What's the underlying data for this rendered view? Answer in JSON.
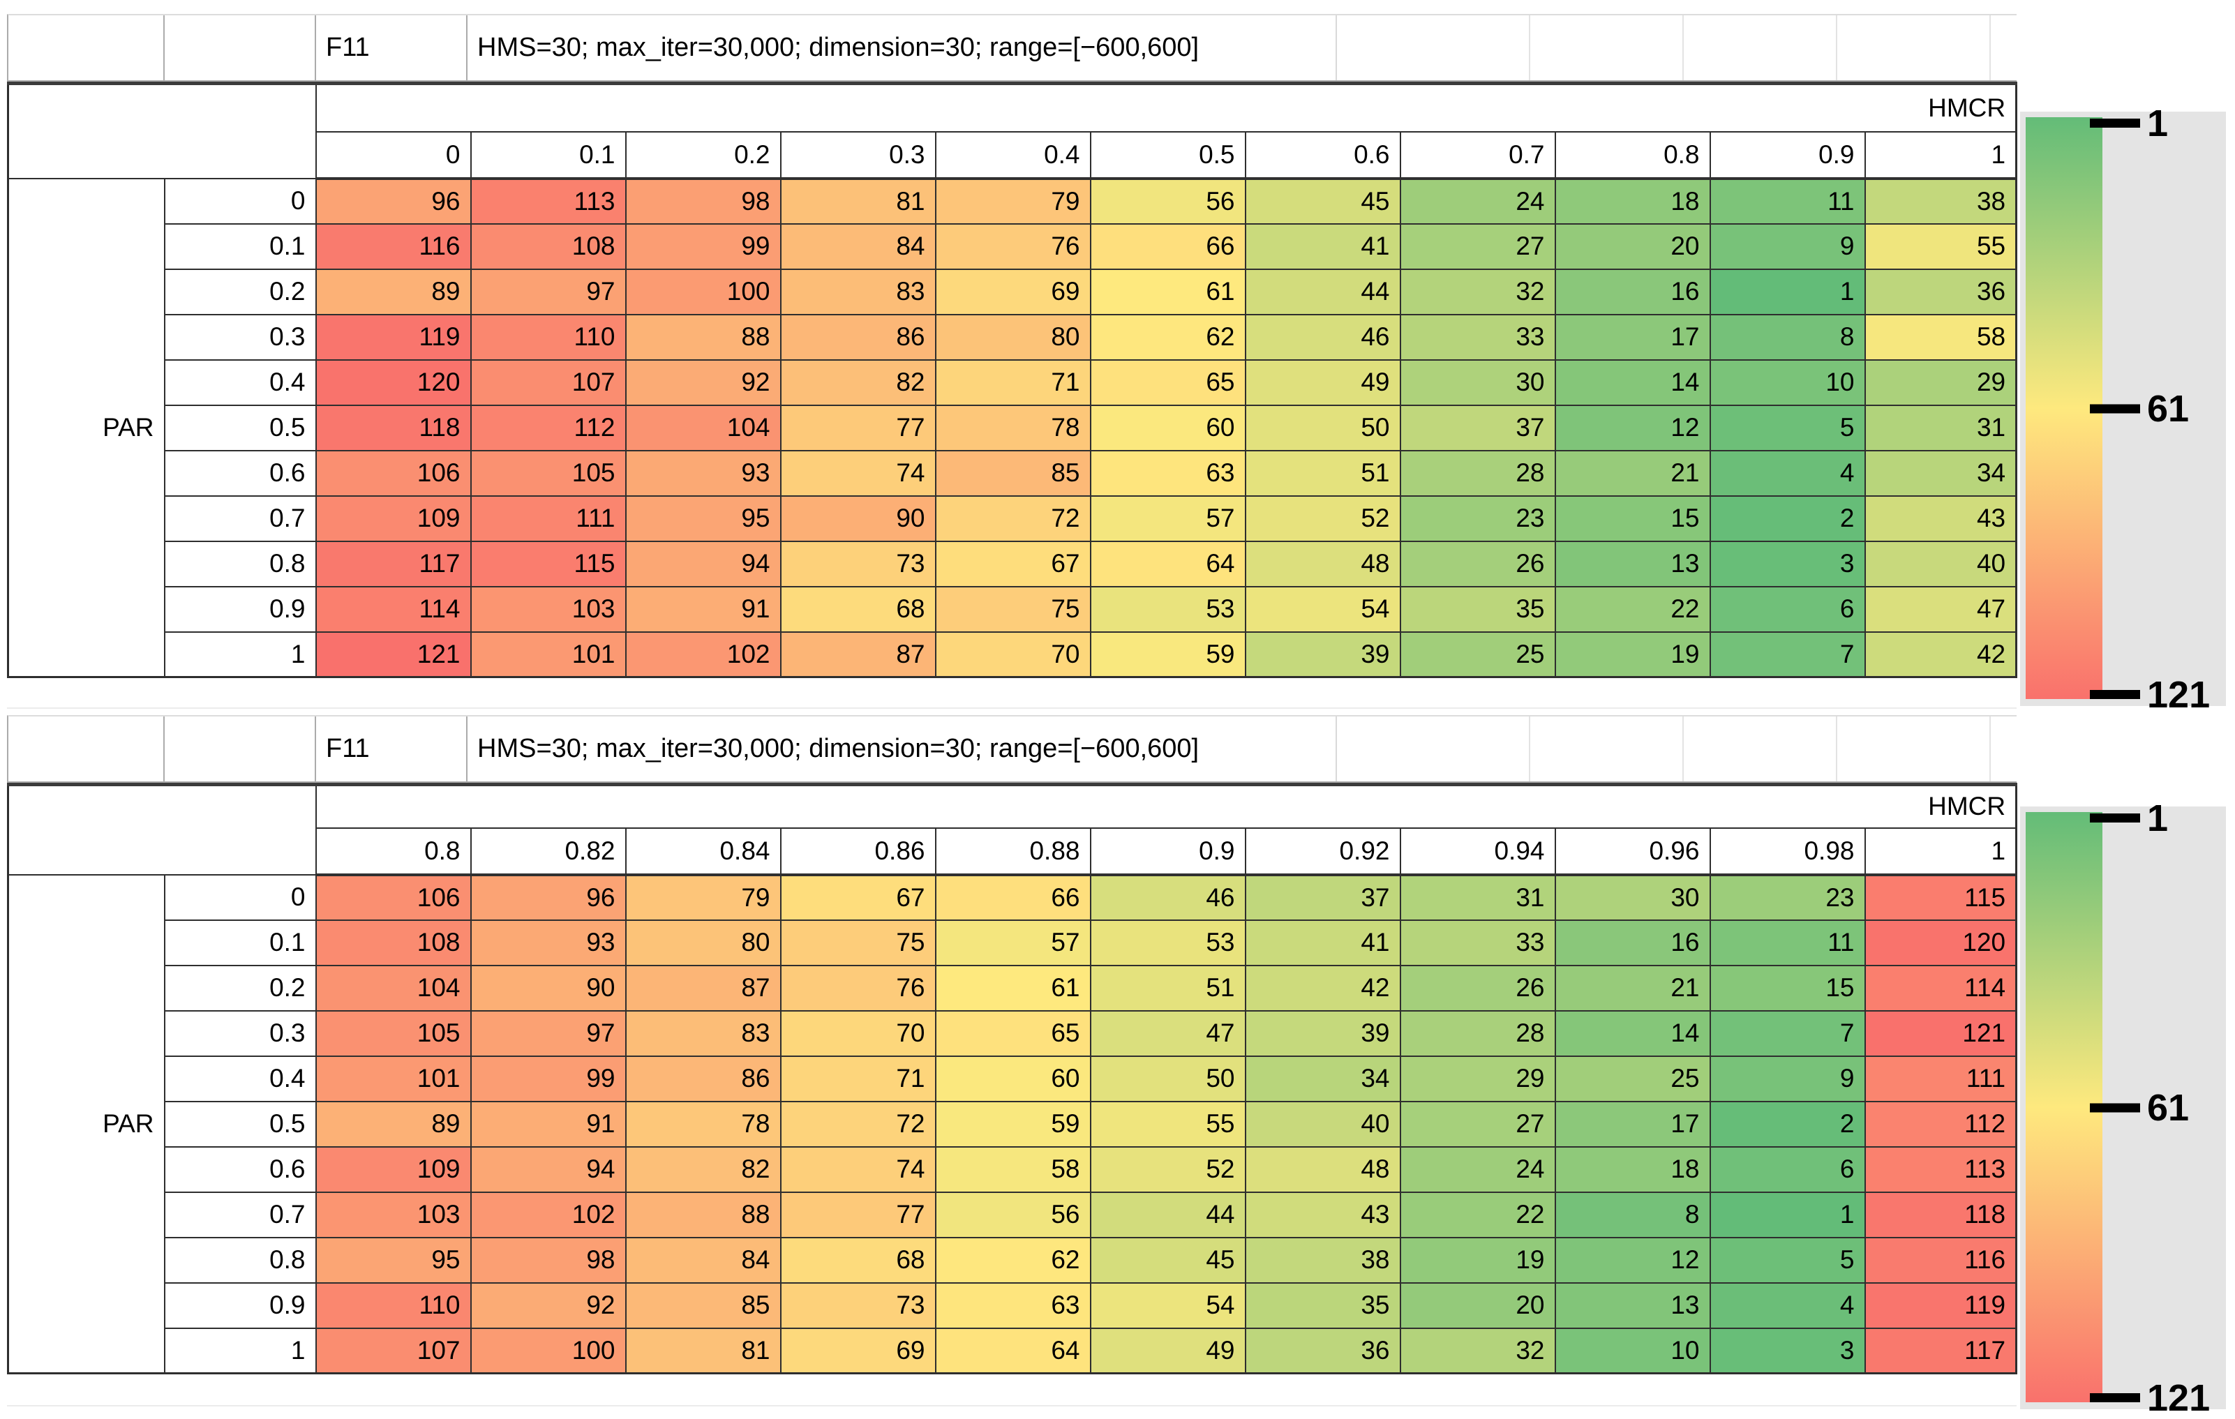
{
  "figure": {
    "blocks": [
      {
        "function_label": "F11",
        "settings": "HMS=30; max_iter=30,000; dimension=30; range=[−600,600]",
        "col_group_label": "HMCR",
        "row_group_label": "PAR"
      },
      {
        "function_label": "F11",
        "settings": "HMS=30; max_iter=30,000; dimension=30; range=[−600,600]",
        "col_group_label": "HMCR",
        "row_group_label": "PAR"
      }
    ],
    "legend": {
      "top_label": "1",
      "mid_label": "61",
      "bottom_label": "121"
    },
    "colors": {
      "scale_min_green": "#63BC78",
      "scale_mid_yellow": "#FEE97E",
      "scale_max_red": "#F9716C",
      "legend_panel": "#E4E4E4",
      "border_dark": "#2E2E2E",
      "grid_faint": "#E3E3E3"
    }
  },
  "chart_data": [
    {
      "type": "heatmap",
      "title": "F11 — HMS=30; max_iter=30,000; dimension=30; range=[−600,600]",
      "xlabel": "HMCR",
      "ylabel": "PAR",
      "columns": [
        "0",
        "0.1",
        "0.2",
        "0.3",
        "0.4",
        "0.5",
        "0.6",
        "0.7",
        "0.8",
        "0.9",
        "1"
      ],
      "rows": [
        "0",
        "0.1",
        "0.2",
        "0.3",
        "0.4",
        "0.5",
        "0.6",
        "0.7",
        "0.8",
        "0.9",
        "1"
      ],
      "values": [
        [
          96,
          113,
          98,
          81,
          79,
          56,
          45,
          24,
          18,
          11,
          38
        ],
        [
          116,
          108,
          99,
          84,
          76,
          66,
          41,
          27,
          20,
          9,
          55
        ],
        [
          89,
          97,
          100,
          83,
          69,
          61,
          44,
          32,
          16,
          1,
          36
        ],
        [
          119,
          110,
          88,
          86,
          80,
          62,
          46,
          33,
          17,
          8,
          58
        ],
        [
          120,
          107,
          92,
          82,
          71,
          65,
          49,
          30,
          14,
          10,
          29
        ],
        [
          118,
          112,
          104,
          77,
          78,
          60,
          50,
          37,
          12,
          5,
          31
        ],
        [
          106,
          105,
          93,
          74,
          85,
          63,
          51,
          28,
          21,
          4,
          34
        ],
        [
          109,
          111,
          95,
          90,
          72,
          57,
          52,
          23,
          15,
          2,
          43
        ],
        [
          117,
          115,
          94,
          73,
          67,
          64,
          48,
          26,
          13,
          3,
          40
        ],
        [
          114,
          103,
          91,
          68,
          75,
          53,
          54,
          35,
          22,
          6,
          47
        ],
        [
          121,
          101,
          102,
          87,
          70,
          59,
          39,
          25,
          19,
          7,
          42
        ]
      ],
      "scale": {
        "min": 1,
        "mid": 61,
        "max": 121,
        "min_color": "#63BC78",
        "mid_color": "#FEE97E",
        "max_color": "#F9716C"
      },
      "legend_ticks": [
        1,
        61,
        121
      ],
      "legend_position": "right"
    },
    {
      "type": "heatmap",
      "title": "F11 — HMS=30; max_iter=30,000; dimension=30; range=[−600,600]",
      "xlabel": "HMCR",
      "ylabel": "PAR",
      "columns": [
        "0.8",
        "0.82",
        "0.84",
        "0.86",
        "0.88",
        "0.9",
        "0.92",
        "0.94",
        "0.96",
        "0.98",
        "1"
      ],
      "rows": [
        "0",
        "0.1",
        "0.2",
        "0.3",
        "0.4",
        "0.5",
        "0.6",
        "0.7",
        "0.8",
        "0.9",
        "1"
      ],
      "values": [
        [
          106,
          96,
          79,
          67,
          66,
          46,
          37,
          31,
          30,
          23,
          115
        ],
        [
          108,
          93,
          80,
          75,
          57,
          53,
          41,
          33,
          16,
          11,
          120
        ],
        [
          104,
          90,
          87,
          76,
          61,
          51,
          42,
          26,
          21,
          15,
          114
        ],
        [
          105,
          97,
          83,
          70,
          65,
          47,
          39,
          28,
          14,
          7,
          121
        ],
        [
          101,
          99,
          86,
          71,
          60,
          50,
          34,
          29,
          25,
          9,
          111
        ],
        [
          89,
          91,
          78,
          72,
          59,
          55,
          40,
          27,
          17,
          2,
          112
        ],
        [
          109,
          94,
          82,
          74,
          58,
          52,
          48,
          24,
          18,
          6,
          113
        ],
        [
          103,
          102,
          88,
          77,
          56,
          44,
          43,
          22,
          8,
          1,
          118
        ],
        [
          95,
          98,
          84,
          68,
          62,
          45,
          38,
          19,
          12,
          5,
          116
        ],
        [
          110,
          92,
          85,
          73,
          63,
          54,
          35,
          20,
          13,
          4,
          119
        ],
        [
          107,
          100,
          81,
          69,
          64,
          49,
          36,
          32,
          10,
          3,
          117
        ]
      ],
      "scale": {
        "min": 1,
        "mid": 61,
        "max": 121,
        "min_color": "#63BC78",
        "mid_color": "#FEE97E",
        "max_color": "#F9716C"
      },
      "legend_ticks": [
        1,
        61,
        121
      ],
      "legend_position": "right"
    }
  ]
}
